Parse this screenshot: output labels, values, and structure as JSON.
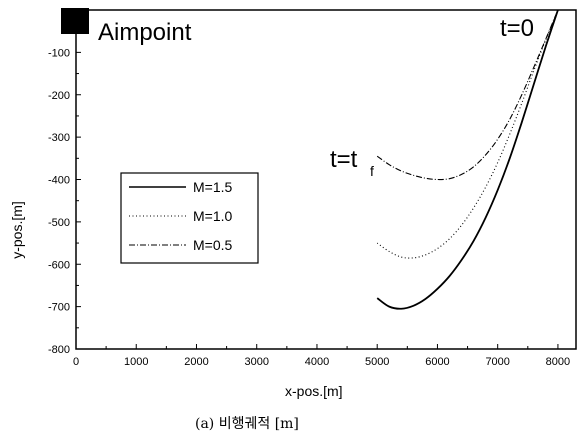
{
  "chart_data": {
    "type": "line",
    "title": "",
    "xlabel": "x-pos.[m]",
    "ylabel": "y-pos.[m]",
    "caption": "(a) 비행궤적 [m]",
    "xlim": [
      0,
      8300
    ],
    "ylim": [
      -800,
      0
    ],
    "xticks": [
      0,
      1000,
      2000,
      3000,
      4000,
      5000,
      6000,
      7000,
      8000
    ],
    "yticks": [
      -800,
      -700,
      -600,
      -500,
      -400,
      -300,
      -200,
      -100
    ],
    "grid": false,
    "legend_position": "center-left",
    "series": [
      {
        "name": "M=1.5",
        "dash": "solid",
        "x": [
          5000,
          5200,
          5400,
          5600,
          5800,
          6000,
          6200,
          6400,
          6600,
          6800,
          7000,
          7200,
          7400,
          7600,
          7800,
          8000
        ],
        "y": [
          -680,
          -700,
          -705,
          -698,
          -682,
          -658,
          -628,
          -590,
          -545,
          -490,
          -425,
          -350,
          -265,
          -175,
          -85,
          0
        ]
      },
      {
        "name": "M=1.0",
        "dash": "dotted",
        "x": [
          5000,
          5200,
          5400,
          5600,
          5800,
          6000,
          6200,
          6400,
          6600,
          6800,
          7000,
          7200,
          7400,
          7600,
          7800,
          8000
        ],
        "y": [
          -550,
          -570,
          -583,
          -585,
          -578,
          -563,
          -540,
          -508,
          -467,
          -418,
          -360,
          -293,
          -220,
          -143,
          -70,
          0
        ]
      },
      {
        "name": "M=0.5",
        "dash": "dashdot",
        "x": [
          5000,
          5200,
          5400,
          5600,
          5800,
          6000,
          6200,
          6400,
          6600,
          6800,
          7000,
          7200,
          7400,
          7600,
          7800,
          8000
        ],
        "y": [
          -345,
          -365,
          -380,
          -390,
          -397,
          -400,
          -398,
          -388,
          -370,
          -342,
          -305,
          -258,
          -200,
          -135,
          -68,
          0
        ]
      }
    ],
    "annotations": {
      "aimpoint": "Aimpoint",
      "t_start": "t=0",
      "t_final_base": "t=t",
      "t_final_sub": "f"
    }
  }
}
